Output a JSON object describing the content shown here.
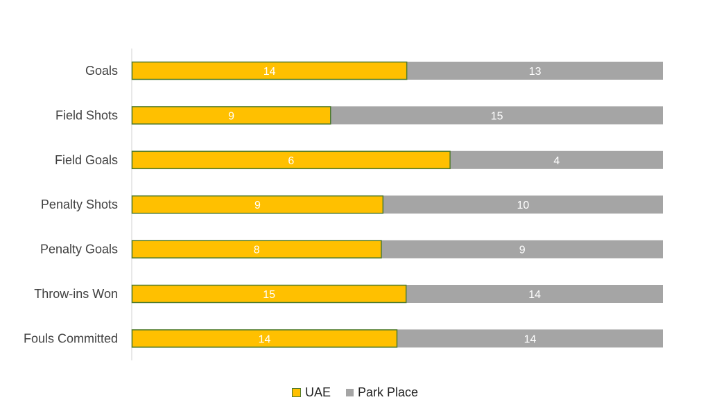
{
  "chart_data": {
    "type": "bar",
    "orientation": "horizontal",
    "stacked": "percent",
    "categories": [
      "Goals",
      "Field Shots",
      "Field Goals",
      "Penalty Shots",
      "Penalty Goals",
      "Throw-ins Won",
      "Fouls Committed"
    ],
    "series": [
      {
        "name": "UAE",
        "values": [
          14,
          9,
          6,
          9,
          8,
          15,
          14
        ],
        "color": "#FFC000",
        "border": "#4E7A2C"
      },
      {
        "name": "Park Place",
        "values": [
          13,
          15,
          4,
          10,
          9,
          14,
          14
        ],
        "color": "#A5A5A5"
      }
    ],
    "title": "",
    "xlabel": "",
    "ylabel": "",
    "legend_position": "bottom",
    "grid": false
  }
}
